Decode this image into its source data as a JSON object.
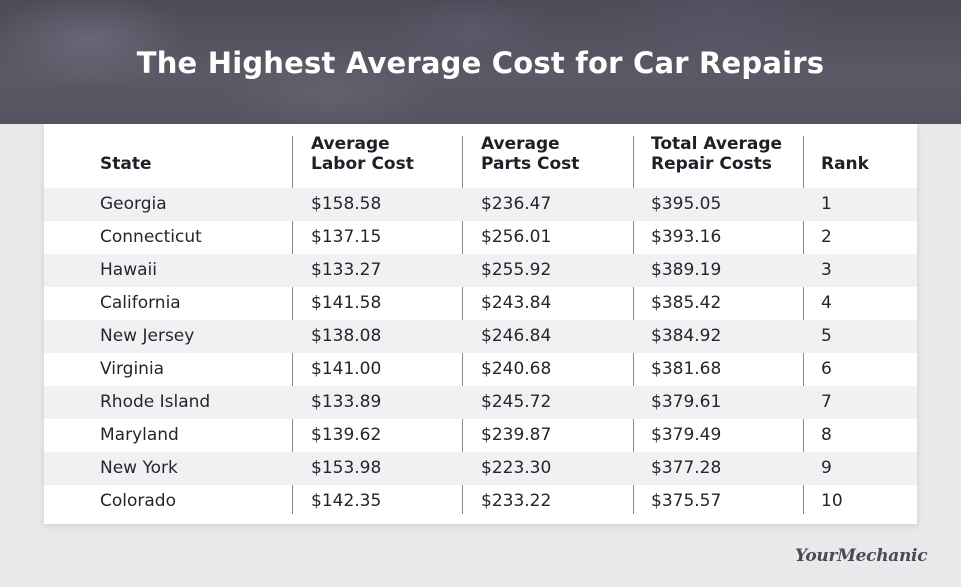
{
  "chart_data": {
    "type": "table",
    "title": "The Highest Average Cost for Car Repairs",
    "columns": [
      {
        "line1": "",
        "line2": "State"
      },
      {
        "line1": "Average",
        "line2": "Labor Cost"
      },
      {
        "line1": "Average",
        "line2": "Parts Cost"
      },
      {
        "line1": "Total Average",
        "line2": "Repair Costs"
      },
      {
        "line1": "",
        "line2": "Rank"
      }
    ],
    "rows": [
      [
        "Georgia",
        "$158.58",
        "$236.47",
        "$395.05",
        "1"
      ],
      [
        "Connecticut",
        "$137.15",
        "$256.01",
        "$393.16",
        "2"
      ],
      [
        "Hawaii",
        "$133.27",
        "$255.92",
        "$389.19",
        "3"
      ],
      [
        "California",
        "$141.58",
        "$243.84",
        "$385.42",
        "4"
      ],
      [
        "New Jersey",
        "$138.08",
        "$246.84",
        "$384.92",
        "5"
      ],
      [
        "Virginia",
        "$141.00",
        "$240.68",
        "$381.68",
        "6"
      ],
      [
        "Rhode Island",
        "$133.89",
        "$245.72",
        "$379.61",
        "7"
      ],
      [
        "Maryland",
        "$139.62",
        "$239.87",
        "$379.49",
        "8"
      ],
      [
        "New York",
        "$153.98",
        "$223.30",
        "$377.28",
        "9"
      ],
      [
        "Colorado",
        "$142.35",
        "$233.22",
        "$375.57",
        "10"
      ]
    ]
  },
  "brand": {
    "logo_text": "YourMechanic"
  }
}
